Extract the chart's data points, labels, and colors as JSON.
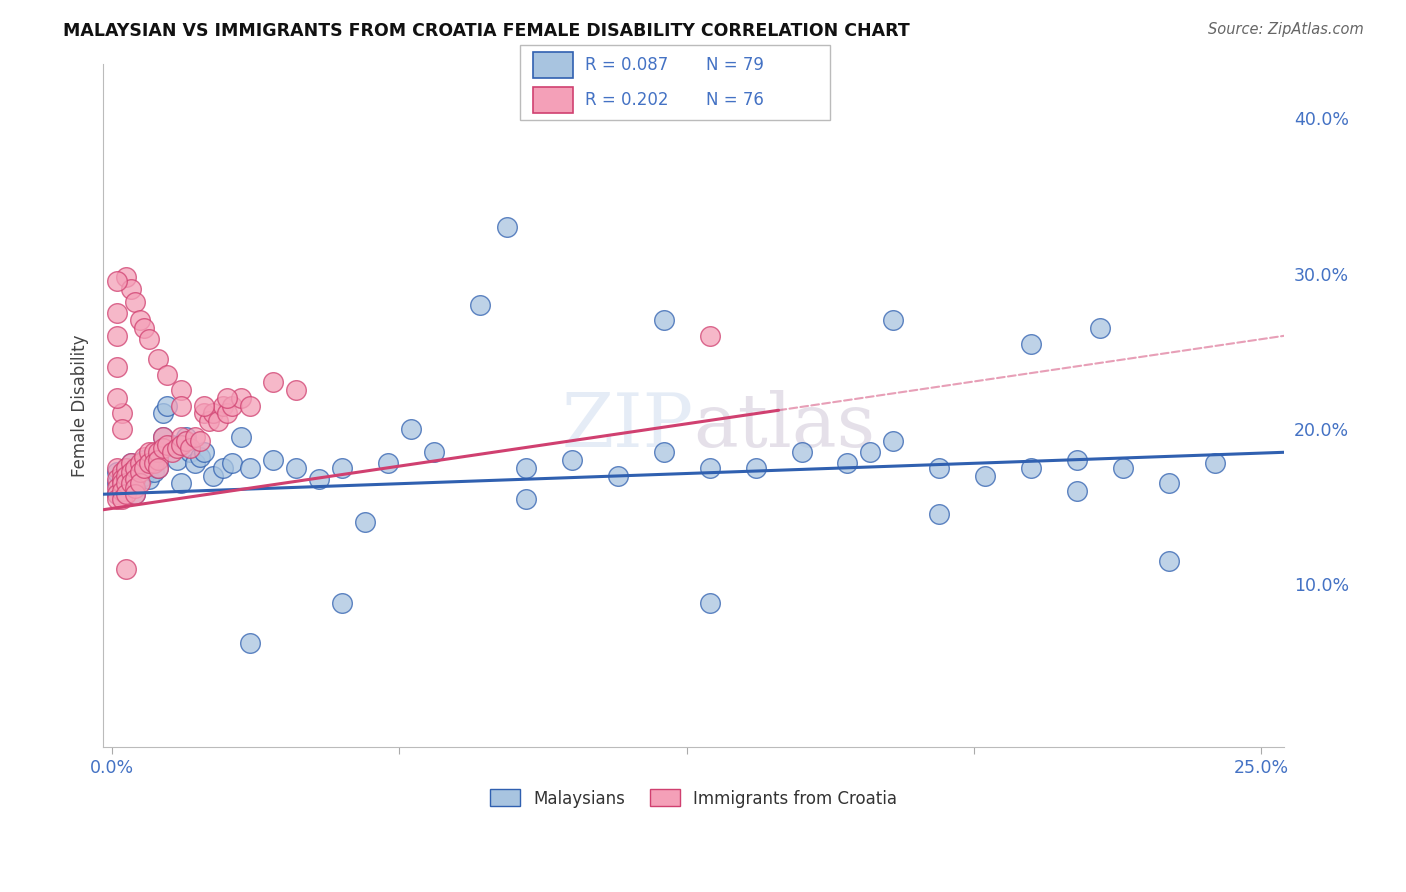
{
  "title": "MALAYSIAN VS IMMIGRANTS FROM CROATIA FEMALE DISABILITY CORRELATION CHART",
  "source": "Source: ZipAtlas.com",
  "ylabel": "Female Disability",
  "r_malaysian": 0.087,
  "n_malaysian": 79,
  "r_croatian": 0.202,
  "n_croatian": 76,
  "legend_labels": [
    "Malaysians",
    "Immigrants from Croatia"
  ],
  "malaysian_color": "#a8c4e0",
  "croatian_color": "#f4a0b8",
  "trend_malaysian_color": "#3060b0",
  "trend_croatian_color": "#d04070",
  "xlim": [
    -0.002,
    0.255
  ],
  "ylim": [
    -0.005,
    0.435
  ],
  "x_ticks": [
    0.0,
    0.25
  ],
  "x_tick_labels": [
    "0.0%",
    "25.0%"
  ],
  "y_ticks": [
    0.1,
    0.2,
    0.3,
    0.4
  ],
  "y_tick_labels": [
    "10.0%",
    "20.0%",
    "30.0%",
    "40.0%"
  ],
  "mal_trend_start_y": 0.158,
  "mal_trend_end_y": 0.185,
  "cro_trend_start_y": 0.148,
  "cro_trend_end_y": 0.26,
  "mal_x": [
    0.001,
    0.001,
    0.001,
    0.002,
    0.002,
    0.002,
    0.003,
    0.003,
    0.003,
    0.004,
    0.004,
    0.004,
    0.005,
    0.005,
    0.005,
    0.006,
    0.006,
    0.007,
    0.007,
    0.008,
    0.008,
    0.009,
    0.009,
    0.01,
    0.01,
    0.011,
    0.011,
    0.012,
    0.013,
    0.014,
    0.015,
    0.016,
    0.017,
    0.018,
    0.019,
    0.02,
    0.022,
    0.024,
    0.026,
    0.028,
    0.03,
    0.035,
    0.04,
    0.045,
    0.05,
    0.055,
    0.06,
    0.065,
    0.07,
    0.08,
    0.09,
    0.1,
    0.11,
    0.12,
    0.13,
    0.14,
    0.15,
    0.16,
    0.17,
    0.18,
    0.19,
    0.2,
    0.21,
    0.22,
    0.23,
    0.24,
    0.086,
    0.12,
    0.17,
    0.2,
    0.215,
    0.23,
    0.18,
    0.09,
    0.13,
    0.05,
    0.03,
    0.21,
    0.165
  ],
  "mal_y": [
    0.165,
    0.172,
    0.158,
    0.17,
    0.165,
    0.16,
    0.168,
    0.175,
    0.162,
    0.17,
    0.165,
    0.178,
    0.172,
    0.165,
    0.158,
    0.175,
    0.168,
    0.18,
    0.17,
    0.175,
    0.168,
    0.172,
    0.18,
    0.175,
    0.185,
    0.195,
    0.21,
    0.215,
    0.19,
    0.18,
    0.165,
    0.195,
    0.185,
    0.178,
    0.182,
    0.185,
    0.17,
    0.175,
    0.178,
    0.195,
    0.175,
    0.18,
    0.175,
    0.168,
    0.175,
    0.14,
    0.178,
    0.2,
    0.185,
    0.28,
    0.175,
    0.18,
    0.17,
    0.185,
    0.175,
    0.175,
    0.185,
    0.178,
    0.192,
    0.175,
    0.17,
    0.175,
    0.16,
    0.175,
    0.165,
    0.178,
    0.33,
    0.27,
    0.27,
    0.255,
    0.265,
    0.115,
    0.145,
    0.155,
    0.088,
    0.088,
    0.062,
    0.18,
    0.185
  ],
  "cro_x": [
    0.001,
    0.001,
    0.001,
    0.001,
    0.001,
    0.002,
    0.002,
    0.002,
    0.002,
    0.002,
    0.003,
    0.003,
    0.003,
    0.003,
    0.004,
    0.004,
    0.004,
    0.005,
    0.005,
    0.005,
    0.005,
    0.006,
    0.006,
    0.006,
    0.007,
    0.007,
    0.008,
    0.008,
    0.009,
    0.009,
    0.01,
    0.01,
    0.01,
    0.011,
    0.011,
    0.012,
    0.013,
    0.014,
    0.015,
    0.015,
    0.016,
    0.017,
    0.018,
    0.019,
    0.02,
    0.021,
    0.022,
    0.023,
    0.024,
    0.025,
    0.026,
    0.028,
    0.03,
    0.035,
    0.04,
    0.003,
    0.004,
    0.005,
    0.006,
    0.007,
    0.008,
    0.01,
    0.012,
    0.015,
    0.015,
    0.02,
    0.025,
    0.003,
    0.002,
    0.002,
    0.001,
    0.001,
    0.001,
    0.001,
    0.001,
    0.13
  ],
  "cro_y": [
    0.175,
    0.168,
    0.162,
    0.158,
    0.155,
    0.172,
    0.168,
    0.165,
    0.16,
    0.155,
    0.175,
    0.17,
    0.165,
    0.158,
    0.178,
    0.172,
    0.165,
    0.175,
    0.168,
    0.162,
    0.158,
    0.178,
    0.172,
    0.165,
    0.182,
    0.175,
    0.185,
    0.178,
    0.185,
    0.178,
    0.185,
    0.18,
    0.175,
    0.195,
    0.188,
    0.19,
    0.185,
    0.188,
    0.195,
    0.19,
    0.192,
    0.188,
    0.195,
    0.192,
    0.21,
    0.205,
    0.21,
    0.205,
    0.215,
    0.21,
    0.215,
    0.22,
    0.215,
    0.23,
    0.225,
    0.298,
    0.29,
    0.282,
    0.27,
    0.265,
    0.258,
    0.245,
    0.235,
    0.225,
    0.215,
    0.215,
    0.22,
    0.11,
    0.21,
    0.2,
    0.295,
    0.275,
    0.26,
    0.24,
    0.22,
    0.26
  ]
}
